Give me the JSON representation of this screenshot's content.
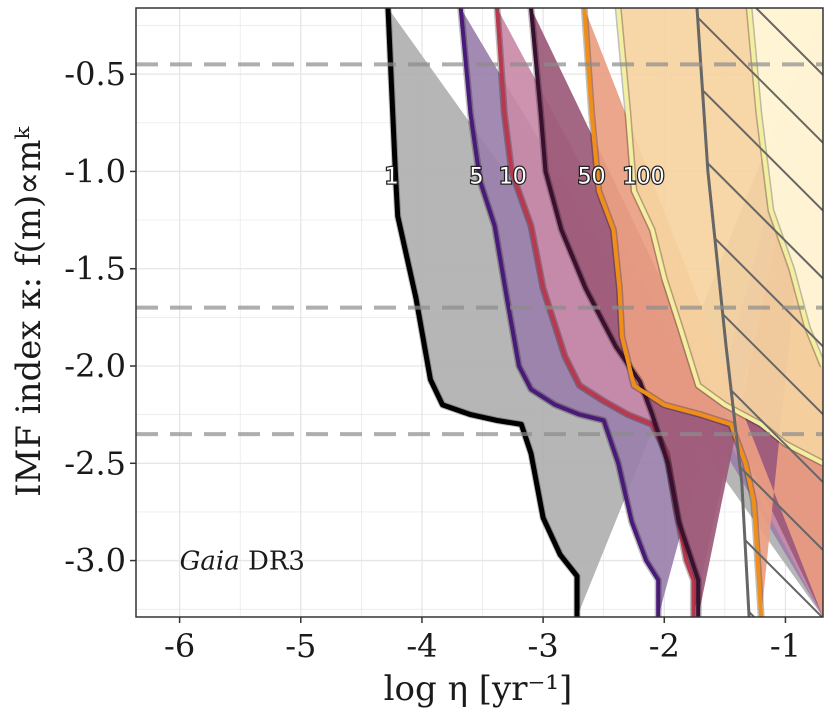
{
  "chart_data": {
    "type": "area",
    "title": "",
    "xlabel": "log η [yr⁻¹]",
    "ylabel": "IMF index κ: f(m)∝mᵏ",
    "xlim": [
      -6.36,
      -0.69
    ],
    "ylim": [
      -3.29,
      -0.16
    ],
    "x_ticks": [
      -6,
      -5,
      -4,
      -3,
      -2,
      -1
    ],
    "x_tick_labels": [
      "-6",
      "-5",
      "-4",
      "-3",
      "-2",
      "-1"
    ],
    "y_ticks": [
      -0.5,
      -1.0,
      -1.5,
      -2.0,
      -2.5,
      -3.0
    ],
    "y_tick_labels": [
      "-0.5",
      "-1.0",
      "-1.5",
      "-2.0",
      "-2.5",
      "-3.0"
    ],
    "grid": true,
    "annotation": {
      "italic": "Gaia",
      "rest": " DR3",
      "x": -6.0,
      "y": -3.0
    },
    "reference_lines": [
      -0.45,
      -1.7,
      -2.35
    ],
    "excluded_region_left_edge": [
      [
        -1.73,
        -0.16
      ],
      [
        -1.64,
        -1.0
      ],
      [
        -1.49,
        -1.9
      ],
      [
        -1.36,
        -2.6
      ],
      [
        -1.3,
        -3.29
      ]
    ],
    "contours": [
      {
        "label": "1",
        "label_x": -4.25,
        "label_y": -1.02,
        "fill": "#b0b0b0",
        "line": "#000000",
        "left": [
          [
            -4.28,
            -0.16
          ],
          [
            -4.22,
            -1.0
          ],
          [
            -4.2,
            -1.23
          ],
          [
            -4.05,
            -1.65
          ],
          [
            -3.93,
            -2.07
          ],
          [
            -3.83,
            -2.2
          ],
          [
            -3.6,
            -2.25
          ],
          [
            -3.38,
            -2.28
          ],
          [
            -3.18,
            -2.3
          ],
          [
            -3.1,
            -2.45
          ],
          [
            -3.0,
            -2.78
          ],
          [
            -2.86,
            -2.97
          ],
          [
            -2.72,
            -3.08
          ],
          [
            -2.72,
            -3.29
          ]
        ],
        "right": [
          [
            -0.69,
            -0.16
          ],
          [
            -0.69,
            -3.29
          ]
        ]
      },
      {
        "label": "5",
        "label_x": -3.55,
        "label_y": -1.02,
        "fill": "#9a80ab",
        "line": "#4a1a7a",
        "left": [
          [
            -3.68,
            -0.16
          ],
          [
            -3.6,
            -0.7
          ],
          [
            -3.52,
            -1.05
          ],
          [
            -3.4,
            -1.28
          ],
          [
            -3.3,
            -1.65
          ],
          [
            -3.2,
            -2.0
          ],
          [
            -3.1,
            -2.12
          ],
          [
            -2.9,
            -2.2
          ],
          [
            -2.7,
            -2.25
          ],
          [
            -2.5,
            -2.28
          ],
          [
            -2.38,
            -2.5
          ],
          [
            -2.27,
            -2.8
          ],
          [
            -2.15,
            -3.0
          ],
          [
            -2.05,
            -3.1
          ],
          [
            -2.05,
            -3.29
          ]
        ],
        "right": [
          [
            -0.69,
            -0.16
          ],
          [
            -0.69,
            -3.29
          ]
        ]
      },
      {
        "label": "10",
        "label_x": -3.25,
        "label_y": -1.02,
        "fill": "#c98aa8",
        "line": "#b8384e",
        "left": [
          [
            -3.38,
            -0.16
          ],
          [
            -3.32,
            -0.7
          ],
          [
            -3.26,
            -1.0
          ],
          [
            -3.1,
            -1.28
          ],
          [
            -3.0,
            -1.6
          ],
          [
            -2.82,
            -1.95
          ],
          [
            -2.7,
            -2.1
          ],
          [
            -2.5,
            -2.18
          ],
          [
            -2.3,
            -2.25
          ],
          [
            -2.1,
            -2.3
          ],
          [
            -1.98,
            -2.45
          ],
          [
            -1.9,
            -2.75
          ],
          [
            -1.82,
            -3.0
          ],
          [
            -1.76,
            -3.1
          ],
          [
            -1.76,
            -3.29
          ]
        ],
        "right": [
          [
            -0.69,
            -0.16
          ],
          [
            -0.69,
            -3.29
          ]
        ]
      },
      {
        "label": "",
        "label_x": null,
        "label_y": null,
        "fill": "#9c5a78",
        "line": "#3a1030",
        "left": [
          [
            -3.1,
            -0.16
          ],
          [
            -3.02,
            -0.7
          ],
          [
            -2.98,
            -1.0
          ],
          [
            -2.85,
            -1.3
          ],
          [
            -2.65,
            -1.6
          ],
          [
            -2.4,
            -1.9
          ],
          [
            -2.2,
            -2.08
          ],
          [
            -2.1,
            -2.25
          ],
          [
            -1.97,
            -2.5
          ],
          [
            -1.88,
            -2.8
          ],
          [
            -1.8,
            -2.95
          ],
          [
            -1.72,
            -3.1
          ],
          [
            -1.72,
            -3.29
          ]
        ],
        "right": [
          [
            -0.69,
            -0.16
          ],
          [
            -0.69,
            -3.29
          ]
        ]
      },
      {
        "label": "50",
        "label_x": -2.6,
        "label_y": -1.02,
        "fill": "#ea9e82",
        "line": "#ef8f1a",
        "left": [
          [
            -2.66,
            -0.16
          ],
          [
            -2.6,
            -0.7
          ],
          [
            -2.54,
            -1.1
          ],
          [
            -2.42,
            -1.3
          ],
          [
            -2.37,
            -1.6
          ],
          [
            -2.35,
            -1.85
          ],
          [
            -2.25,
            -2.1
          ],
          [
            -2.0,
            -2.2
          ],
          [
            -1.7,
            -2.25
          ],
          [
            -1.45,
            -2.3
          ],
          [
            -1.33,
            -2.5
          ],
          [
            -1.26,
            -2.7
          ],
          [
            -1.2,
            -3.29
          ]
        ],
        "right": [
          [
            -0.69,
            -0.16
          ],
          [
            -0.69,
            -3.29
          ]
        ]
      },
      {
        "label": "100",
        "label_x": -2.17,
        "label_y": -1.02,
        "fill": "#f6d3a0",
        "line": "#f2f0a0",
        "left": [
          [
            -2.38,
            -0.16
          ],
          [
            -2.3,
            -0.7
          ],
          [
            -2.25,
            -1.1
          ],
          [
            -2.1,
            -1.3
          ],
          [
            -2.0,
            -1.55
          ],
          [
            -1.87,
            -1.8
          ],
          [
            -1.72,
            -2.1
          ],
          [
            -1.5,
            -2.2
          ],
          [
            -1.2,
            -2.3
          ],
          [
            -1.0,
            -2.4
          ],
          [
            -0.69,
            -2.5
          ]
        ],
        "right": [
          [
            -0.69,
            -0.16
          ]
        ]
      },
      {
        "label": "",
        "label_x": null,
        "label_y": null,
        "fill": "#fff6d8",
        "line": "#f2f0a0",
        "left": [
          [
            -1.3,
            -0.16
          ],
          [
            -1.22,
            -0.7
          ],
          [
            -1.12,
            -1.2
          ],
          [
            -0.95,
            -1.5
          ],
          [
            -0.82,
            -1.8
          ],
          [
            -0.69,
            -2.0
          ]
        ],
        "right": [
          [
            -0.69,
            -0.16
          ]
        ]
      }
    ]
  }
}
